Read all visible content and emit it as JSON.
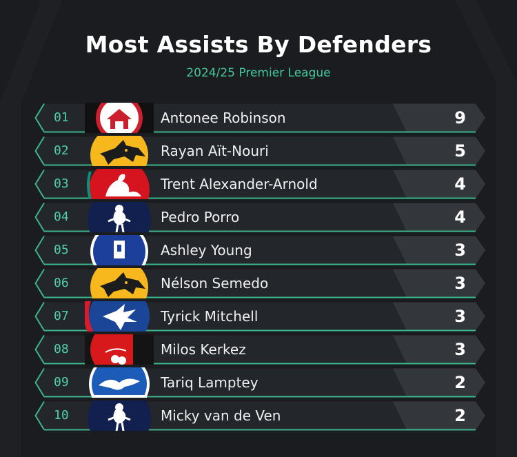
{
  "header": {
    "title": "Most Assists By Defenders",
    "subtitle": "2024/25 Premier League"
  },
  "rows": [
    {
      "rank": "01",
      "name": "Antonee Robinson",
      "assists": "9",
      "crest_icon": "fulham-crest-icon",
      "crest_colors": [
        "#ffffff",
        "#cc1f2e",
        "#111111"
      ]
    },
    {
      "rank": "02",
      "name": "Rayan Aït-Nouri",
      "assists": "5",
      "crest_icon": "wolves-crest-icon",
      "crest_colors": [
        "#f6b81c",
        "#1c1c1c"
      ]
    },
    {
      "rank": "03",
      "name": "Trent Alexander-Arnold",
      "assists": "4",
      "crest_icon": "liverpool-crest-icon",
      "crest_colors": [
        "#d5141f",
        "#ffffff",
        "#0e8f7a"
      ]
    },
    {
      "rank": "04",
      "name": "Pedro Porro",
      "assists": "4",
      "crest_icon": "tottenham-crest-icon",
      "crest_colors": [
        "#12204f",
        "#ffffff"
      ]
    },
    {
      "rank": "05",
      "name": "Ashley Young",
      "assists": "3",
      "crest_icon": "everton-crest-icon",
      "crest_colors": [
        "#1d3f9c",
        "#ffffff"
      ]
    },
    {
      "rank": "06",
      "name": "Nélson Semedo",
      "assists": "3",
      "crest_icon": "wolves-crest-icon",
      "crest_colors": [
        "#f6b81c",
        "#1c1c1c"
      ]
    },
    {
      "rank": "07",
      "name": "Tyrick Mitchell",
      "assists": "3",
      "crest_icon": "crystal-palace-crest-icon",
      "crest_colors": [
        "#1b4597",
        "#d71c2b",
        "#ffffff"
      ]
    },
    {
      "rank": "08",
      "name": "Milos Kerkez",
      "assists": "3",
      "crest_icon": "bournemouth-crest-icon",
      "crest_colors": [
        "#d7191c",
        "#141414",
        "#ffffff"
      ]
    },
    {
      "rank": "09",
      "name": "Tariq Lamptey",
      "assists": "2",
      "crest_icon": "brighton-crest-icon",
      "crest_colors": [
        "#1c5bb7",
        "#ffffff"
      ]
    },
    {
      "rank": "10",
      "name": "Micky van de Ven",
      "assists": "2",
      "crest_icon": "tottenham-crest-icon",
      "crest_colors": [
        "#12204f",
        "#ffffff"
      ]
    }
  ],
  "colors": {
    "background": "#1a1c1f",
    "row_fill": "#23262a",
    "row_border": "#3cb68c",
    "rank_text": "#4fd1a5",
    "subtitle": "#44c89a",
    "value_panel": "#33373c"
  }
}
